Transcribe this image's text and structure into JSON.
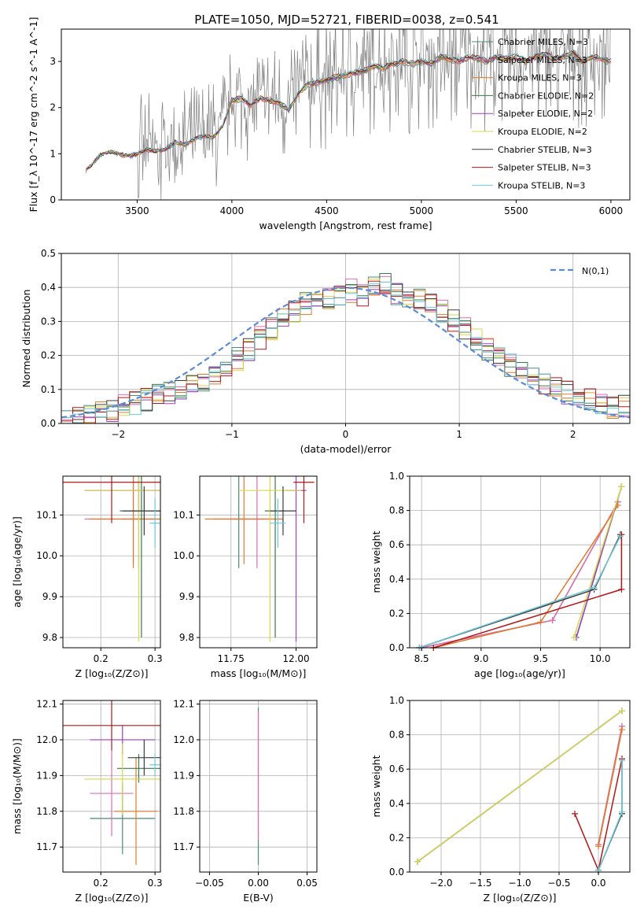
{
  "title": "PLATE=1050, MJD=52721, FIBERID=0038, z=0.541",
  "colors": {
    "data": "#808080",
    "normal": "#5b8bd6",
    "series": [
      "#4a8a7a",
      "#e06fb0",
      "#e07a2a",
      "#3a7a4a",
      "#9b3fc4",
      "#d4d84a",
      "#3c3c3c",
      "#b01818",
      "#6cc8d8"
    ]
  },
  "chart_data": [
    {
      "id": "spectrum",
      "type": "line",
      "xlabel": "wavelength [Angstrom, rest frame]",
      "ylabel": "Flux [f_λ 10^-17 erg cm^-2 s^-1 A^-1]",
      "xlim": [
        3100,
        6100
      ],
      "ylim": [
        0,
        3.7
      ],
      "xticks": [
        3500,
        4000,
        4500,
        5000,
        5500,
        6000
      ],
      "yticks": [
        0,
        1,
        2,
        3
      ],
      "model_x": [
        3230,
        3260,
        3300,
        3350,
        3400,
        3450,
        3500,
        3550,
        3600,
        3650,
        3700,
        3750,
        3800,
        3850,
        3900,
        3950,
        4000,
        4050,
        4100,
        4150,
        4200,
        4250,
        4300,
        4350,
        4400,
        4450,
        4500,
        4550,
        4600,
        4650,
        4700,
        4750,
        4800,
        4850,
        4900,
        4950,
        5000,
        5050,
        5100,
        5150,
        5200,
        5250,
        5300,
        5350,
        5400,
        5450,
        5500,
        5550,
        5600,
        5650,
        5700,
        5750,
        5800,
        5850,
        5900,
        5950,
        6000
      ],
      "model_y": [
        0.65,
        0.75,
        0.95,
        1.05,
        1.0,
        0.95,
        1.0,
        1.1,
        1.05,
        1.1,
        1.25,
        1.2,
        1.3,
        1.4,
        1.35,
        1.6,
        2.15,
        2.2,
        2.05,
        2.2,
        2.15,
        2.1,
        1.95,
        2.3,
        2.5,
        2.55,
        2.6,
        2.65,
        2.7,
        2.75,
        2.8,
        2.9,
        2.85,
        2.95,
        3.0,
        2.95,
        3.0,
        2.95,
        3.1,
        3.05,
        3.0,
        3.1,
        3.05,
        3.0,
        3.1,
        3.05,
        3.1,
        3.0,
        3.1,
        3.15,
        3.05,
        3.1,
        3.2,
        3.0,
        3.1,
        3.05,
        3.0
      ],
      "series": [
        {
          "name": "Chabrier MILES, N_SSP=3"
        },
        {
          "name": "Salpeter MILES, N_SSP=3"
        },
        {
          "name": "Kroupa MILES, N_SSP=3"
        },
        {
          "name": "Chabrier ELODIE, N_SSP=2"
        },
        {
          "name": "Salpeter ELODIE, N_SSP=2"
        },
        {
          "name": "Kroupa ELODIE, N_SSP=2"
        },
        {
          "name": "Chabrier STELIB, N_SSP=3"
        },
        {
          "name": "Salpeter STELIB, N_SSP=3"
        },
        {
          "name": "Kroupa STELIB, N_SSP=3"
        }
      ]
    },
    {
      "id": "residuals",
      "type": "step",
      "xlabel": "(data-model)/error",
      "ylabel": "Normed distribution",
      "xlim": [
        -2.5,
        2.5
      ],
      "ylim": [
        0,
        0.5
      ],
      "xticks": [
        -2,
        -1,
        0,
        1,
        2
      ],
      "yticks": [
        0.0,
        0.1,
        0.2,
        0.3,
        0.4,
        0.5
      ],
      "legend": "N(0,1)",
      "bin_edges_start": -2.5,
      "bin_width": 0.1,
      "hist": [
        0.02,
        0.02,
        0.02,
        0.03,
        0.04,
        0.05,
        0.06,
        0.07,
        0.08,
        0.09,
        0.1,
        0.11,
        0.13,
        0.15,
        0.17,
        0.19,
        0.22,
        0.25,
        0.28,
        0.31,
        0.33,
        0.35,
        0.36,
        0.37,
        0.38,
        0.39,
        0.38,
        0.4,
        0.41,
        0.38,
        0.37,
        0.36,
        0.35,
        0.33,
        0.3,
        0.28,
        0.25,
        0.22,
        0.19,
        0.17,
        0.15,
        0.13,
        0.12,
        0.1,
        0.09,
        0.08,
        0.07,
        0.06,
        0.05,
        0.05
      ]
    },
    {
      "id": "age-vs-Z",
      "type": "errorbar",
      "xlabel": "Z [log10(Z/Z⊙)]",
      "ylabel": "age [log10(age/yr)]",
      "xlim": [
        0.13,
        0.31
      ],
      "ylim": [
        9.775,
        10.195
      ],
      "xticks": [
        0.2,
        0.3
      ],
      "yticks": [
        9.8,
        9.9,
        10.0,
        10.1
      ],
      "points": [
        {
          "x": 0.27,
          "y": 10.09,
          "xerr": 0.03,
          "yerr": 0.12
        },
        {
          "x": 0.26,
          "y": 10.09,
          "xerr": 0.09,
          "yerr": 0.11
        },
        {
          "x": 0.26,
          "y": 10.09,
          "xerr": 0.08,
          "yerr": 0.12
        },
        {
          "x": 0.275,
          "y": 10.11,
          "xerr": 0.04,
          "yerr": 0.31
        },
        {
          "x": 0.27,
          "y": 10.16,
          "xerr": 0.1,
          "yerr": 0.05
        },
        {
          "x": 0.27,
          "y": 10.16,
          "xerr": 0.1,
          "yerr": 0.37
        },
        {
          "x": 0.28,
          "y": 10.11,
          "xerr": 0.04,
          "yerr": 0.06
        },
        {
          "x": 0.22,
          "y": 10.18,
          "xerr": 0.09,
          "yerr": 0.1
        },
        {
          "x": 0.3,
          "y": 10.08,
          "xerr": 0.01,
          "yerr": 0.06
        }
      ]
    },
    {
      "id": "age-vs-mass",
      "type": "errorbar",
      "xlabel": "mass [log10(M/M⊙)]",
      "xlim": [
        11.63,
        12.08
      ],
      "ylim": [
        9.775,
        10.195
      ],
      "xticks": [
        11.75,
        12.0
      ],
      "yticks": [
        9.8,
        9.9,
        10.0,
        10.1
      ],
      "points": [
        {
          "x": 11.78,
          "y": 10.09,
          "xerr": 0.1,
          "yerr": 0.12
        },
        {
          "x": 11.85,
          "y": 10.09,
          "xerr": 0.1,
          "yerr": 0.12
        },
        {
          "x": 11.8,
          "y": 10.09,
          "xerr": 0.15,
          "yerr": 0.11
        },
        {
          "x": 11.92,
          "y": 10.11,
          "xerr": 0.04,
          "yerr": 0.31
        },
        {
          "x": 12.0,
          "y": 10.16,
          "xerr": 0.04,
          "yerr": 0.37
        },
        {
          "x": 11.9,
          "y": 10.16,
          "xerr": 0.12,
          "yerr": 0.37
        },
        {
          "x": 11.95,
          "y": 10.11,
          "xerr": 0.05,
          "yerr": 0.06
        },
        {
          "x": 12.03,
          "y": 10.18,
          "xerr": 0.04,
          "yerr": 0.1
        },
        {
          "x": 11.93,
          "y": 10.08,
          "xerr": 0.03,
          "yerr": 0.06
        }
      ]
    },
    {
      "id": "weight-vs-age",
      "type": "line",
      "xlabel": "age [log10(age/yr)]",
      "ylabel": "mass weight",
      "xlim": [
        8.4,
        10.25
      ],
      "ylim": [
        0,
        1.0
      ],
      "xticks": [
        8.5,
        9.0,
        9.5,
        10.0
      ],
      "yticks": [
        0.0,
        0.2,
        0.4,
        0.6,
        0.8,
        1.0
      ],
      "series": [
        {
          "x": [
            8.5,
            9.6,
            10.15
          ],
          "y": [
            0.0,
            0.16,
            0.85
          ]
        },
        {
          "x": [
            8.5,
            9.6,
            10.15
          ],
          "y": [
            0.0,
            0.16,
            0.85
          ]
        },
        {
          "x": [
            8.6,
            9.5,
            10.15
          ],
          "y": [
            0.0,
            0.15,
            0.83
          ]
        },
        {
          "x": [
            9.8,
            10.18
          ],
          "y": [
            0.06,
            0.94
          ]
        },
        {
          "x": [
            9.8,
            10.18
          ],
          "y": [
            0.06,
            0.94
          ]
        },
        {
          "x": [
            9.78,
            10.18
          ],
          "y": [
            0.06,
            0.94
          ]
        },
        {
          "x": [
            8.48,
            9.95,
            10.17
          ],
          "y": [
            0.0,
            0.34,
            0.66
          ]
        },
        {
          "x": [
            8.6,
            10.18,
            10.18
          ],
          "y": [
            0.0,
            0.34,
            0.66
          ]
        },
        {
          "x": [
            8.48,
            9.95,
            10.17
          ],
          "y": [
            0.0,
            0.35,
            0.65
          ]
        }
      ]
    },
    {
      "id": "mass-vs-Z",
      "type": "errorbar",
      "xlabel": "Z [log10(Z/Z⊙)]",
      "ylabel": "mass [log10(M/M⊙)]",
      "xlim": [
        0.13,
        0.31
      ],
      "ylim": [
        11.63,
        12.11
      ],
      "xticks": [
        0.2,
        0.3
      ],
      "yticks": [
        11.7,
        11.8,
        11.9,
        12.0,
        12.1
      ],
      "points": [
        {
          "x": 0.24,
          "y": 11.78,
          "xerr": 0.06,
          "yerr": 0.1
        },
        {
          "x": 0.22,
          "y": 11.85,
          "xerr": 0.04,
          "yerr": 0.12
        },
        {
          "x": 0.265,
          "y": 11.8,
          "xerr": 0.04,
          "yerr": 0.15
        },
        {
          "x": 0.27,
          "y": 11.92,
          "xerr": 0.04,
          "yerr": 0.04
        },
        {
          "x": 0.24,
          "y": 12.0,
          "xerr": 0.06,
          "yerr": 0.04
        },
        {
          "x": 0.24,
          "y": 11.89,
          "xerr": 0.07,
          "yerr": 0.1
        },
        {
          "x": 0.28,
          "y": 11.95,
          "xerr": 0.03,
          "yerr": 0.05
        },
        {
          "x": 0.22,
          "y": 12.04,
          "xerr": 0.09,
          "yerr": 0.07
        },
        {
          "x": 0.3,
          "y": 11.93,
          "xerr": 0.01,
          "yerr": 0.03
        }
      ]
    },
    {
      "id": "mass-vs-ebv",
      "type": "errorbar",
      "xlabel": "E(B-V)",
      "xlim": [
        -0.06,
        0.06
      ],
      "ylim": [
        11.63,
        12.11
      ],
      "xticks": [
        -0.05,
        0.0,
        0.05
      ],
      "yticks": [
        11.7,
        11.8,
        11.9,
        12.0,
        12.1
      ],
      "points": [
        {
          "x": 0.0,
          "y": 11.87,
          "xerr": 0,
          "yerr": 0.22
        },
        {
          "x": 0.0,
          "y": 11.9,
          "xerr": 0,
          "yerr": 0.18
        }
      ]
    },
    {
      "id": "weight-vs-Z",
      "type": "line",
      "xlabel": "Z [log10(Z/Z⊙)]",
      "ylabel": "mass weight",
      "xlim": [
        -2.4,
        0.4
      ],
      "ylim": [
        0,
        1.0
      ],
      "xticks": [
        -2.0,
        -1.5,
        -1.0,
        -0.5,
        0.0
      ],
      "yticks": [
        0.0,
        0.2,
        0.4,
        0.6,
        0.8,
        1.0
      ],
      "series": [
        {
          "x": [
            0.0,
            0.3
          ],
          "y": [
            0.16,
            0.85
          ]
        },
        {
          "x": [
            0.0,
            0.3
          ],
          "y": [
            0.16,
            0.85
          ]
        },
        {
          "x": [
            0.0,
            0.3
          ],
          "y": [
            0.15,
            0.83
          ]
        },
        {
          "x": [
            -2.3,
            0.3
          ],
          "y": [
            0.06,
            0.94
          ]
        },
        {
          "x": [
            -2.3,
            0.3
          ],
          "y": [
            0.06,
            0.94
          ]
        },
        {
          "x": [
            -2.3,
            0.3
          ],
          "y": [
            0.06,
            0.94
          ]
        },
        {
          "x": [
            0.0,
            0.3,
            0.3
          ],
          "y": [
            0.01,
            0.34,
            0.66
          ]
        },
        {
          "x": [
            -0.3,
            0.0,
            0.3
          ],
          "y": [
            0.34,
            0.01,
            0.66
          ]
        },
        {
          "x": [
            0.0,
            0.3,
            0.3
          ],
          "y": [
            0.01,
            0.35,
            0.65
          ]
        }
      ]
    }
  ]
}
